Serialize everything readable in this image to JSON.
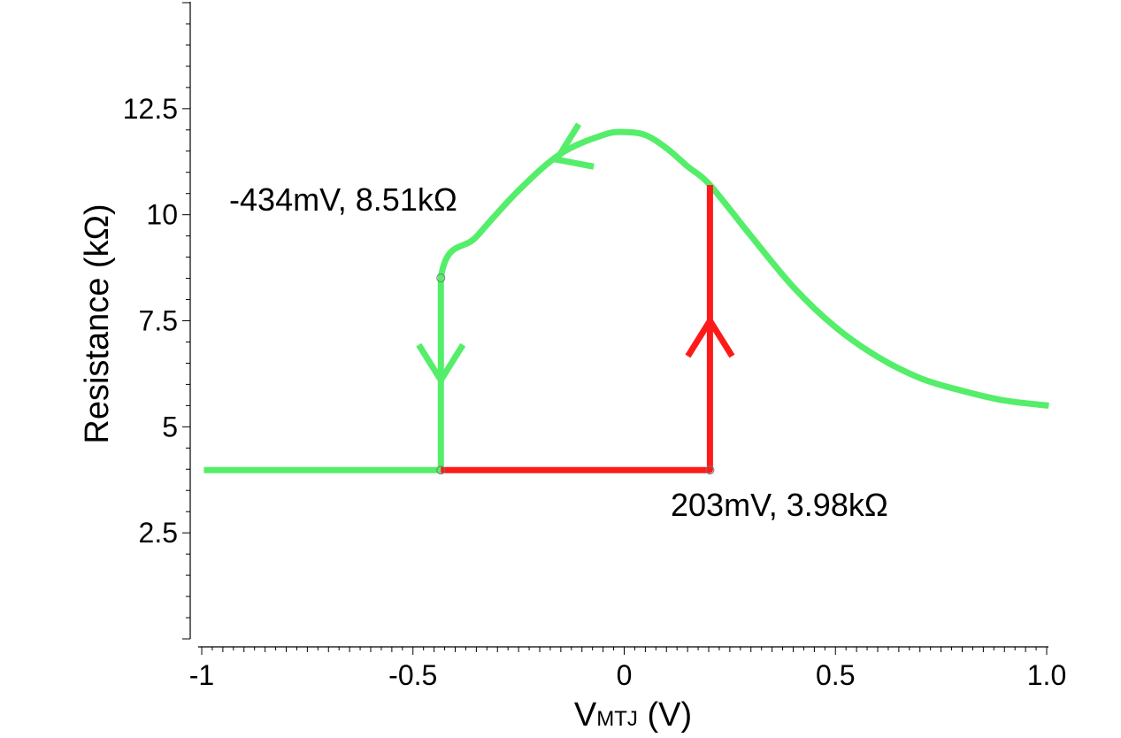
{
  "chart_data": {
    "type": "line",
    "title": "",
    "xlabel": {
      "main": "V",
      "subscript": "MTJ",
      "suffix": " (V)"
    },
    "ylabel": "Resistance (kΩ)",
    "xlim": [
      -1.0,
      1.0
    ],
    "ylim": [
      0,
      15
    ],
    "x_ticks": [
      {
        "value": -1.0,
        "label": "-1"
      },
      {
        "value": -0.5,
        "label": "-0.5"
      },
      {
        "value": 0.0,
        "label": "0"
      },
      {
        "value": 0.5,
        "label": "0.5"
      },
      {
        "value": 1.0,
        "label": "1.0"
      }
    ],
    "y_ticks": [
      {
        "value": 2.5,
        "label": "2.5"
      },
      {
        "value": 5,
        "label": "5"
      },
      {
        "value": 7.5,
        "label": "7.5"
      },
      {
        "value": 10,
        "label": "10"
      },
      {
        "value": 12.5,
        "label": "12.5"
      }
    ],
    "grid": false,
    "legend": "none",
    "series": [
      {
        "color": "#55ee6a",
        "points": [
          [
            -0.995,
            3.98
          ],
          [
            -0.434,
            3.98
          ],
          [
            -0.434,
            8.51
          ],
          [
            -0.35,
            9.48
          ],
          [
            -0.25,
            10.57
          ],
          [
            -0.15,
            11.44
          ],
          [
            -0.05,
            11.88
          ],
          [
            0.0,
            11.95
          ],
          [
            0.05,
            11.88
          ],
          [
            0.1,
            11.57
          ],
          [
            0.15,
            11.14
          ],
          [
            0.203,
            10.7
          ],
          [
            0.3,
            9.5
          ],
          [
            0.4,
            8.3
          ],
          [
            0.5,
            7.35
          ],
          [
            0.6,
            6.65
          ],
          [
            0.7,
            6.15
          ],
          [
            0.8,
            5.85
          ],
          [
            0.9,
            5.62
          ],
          [
            1.005,
            5.5
          ]
        ]
      },
      {
        "color": "#ff1a1a",
        "points": [
          [
            -0.434,
            3.98
          ],
          [
            0.203,
            3.98
          ],
          [
            0.203,
            10.7
          ]
        ]
      }
    ],
    "arrows": [
      {
        "color": "#55ee6a",
        "x": -0.434,
        "y": 6.1,
        "direction": "down"
      },
      {
        "color": "#ff1a1a",
        "x": 0.203,
        "y": 7.5,
        "direction": "up"
      },
      {
        "color": "#55ee6a",
        "x": -0.16,
        "y": 11.3,
        "direction": "upper-left"
      }
    ],
    "markers": [
      {
        "x": -0.434,
        "y": 8.51
      },
      {
        "x": -0.434,
        "y": 3.98
      },
      {
        "x": 0.203,
        "y": 3.98
      }
    ],
    "annotations": [
      {
        "text": "-434mV, 8.51kΩ",
        "x": -0.935,
        "y": 10.1
      },
      {
        "text": "203mV, 3.98kΩ",
        "x": 0.11,
        "y": 2.9
      }
    ]
  }
}
